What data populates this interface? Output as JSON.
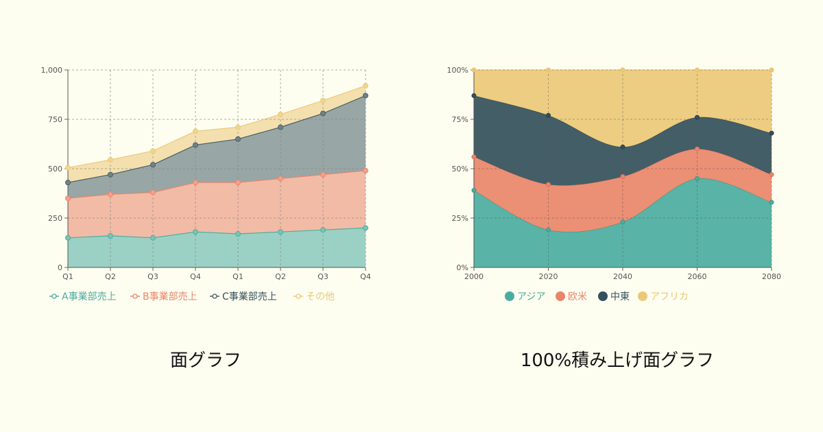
{
  "colors": {
    "background": "#fdfdf0",
    "teal": "#4bada0",
    "salmon": "#e9856a",
    "slate": "#34505c",
    "gold": "#ecc978"
  },
  "chart_data": [
    {
      "type": "area",
      "stacked": true,
      "categories": [
        "Q1",
        "Q2",
        "Q3",
        "Q4",
        "Q1",
        "Q2",
        "Q3",
        "Q4"
      ],
      "yticks": [
        "0",
        "250",
        "500",
        "750",
        "1,000"
      ],
      "ylim": [
        0,
        1000
      ],
      "grid": true,
      "legend_position": "bottom",
      "series": [
        {
          "name": "A事業部売上",
          "values": [
            150,
            160,
            150,
            180,
            170,
            180,
            190,
            200
          ]
        },
        {
          "name": "B事業部売上",
          "values": [
            200,
            210,
            230,
            250,
            260,
            270,
            280,
            290
          ]
        },
        {
          "name": "C事業部売上",
          "values": [
            80,
            100,
            140,
            190,
            220,
            260,
            310,
            380
          ]
        },
        {
          "name": "その他",
          "values": [
            75,
            75,
            70,
            70,
            60,
            65,
            65,
            50
          ]
        }
      ]
    },
    {
      "type": "area",
      "stacked": true,
      "normalized": true,
      "smooth": true,
      "x": [
        "2000",
        "2020",
        "2040",
        "2060",
        "2080"
      ],
      "yticks": [
        "0%",
        "25%",
        "50%",
        "75%",
        "100%"
      ],
      "ylim": [
        0,
        100
      ],
      "grid": true,
      "legend_position": "bottom",
      "series": [
        {
          "name": "アジア",
          "values": [
            39,
            19,
            23,
            45,
            33
          ]
        },
        {
          "name": "欧米",
          "values": [
            17,
            23,
            23,
            15,
            14
          ]
        },
        {
          "name": "中東",
          "values": [
            31,
            35,
            15,
            16,
            21
          ]
        },
        {
          "name": "アフリカ",
          "values": [
            13,
            23,
            39,
            24,
            32
          ]
        }
      ]
    }
  ],
  "captions": {
    "left": "面グラフ",
    "right": "100%積み上げ面グラフ"
  }
}
